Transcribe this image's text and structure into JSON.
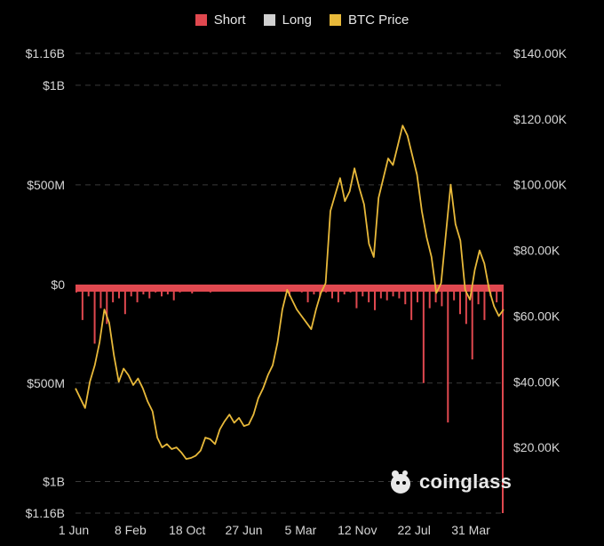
{
  "legend": [
    {
      "label": "Short",
      "color": "#e0484f"
    },
    {
      "label": "Long",
      "color": "#d0d0d0"
    },
    {
      "label": "BTC Price",
      "color": "#e8b93a"
    }
  ],
  "watermark": {
    "text": "coinglass",
    "icon": "coinglass-logo-icon"
  },
  "chart_data": {
    "type": "bar",
    "title": "",
    "grid": true,
    "legend_position": "top-center",
    "x_tick_labels": [
      "1 Jun",
      "8 Feb",
      "18 Oct",
      "27 Jun",
      "5 Mar",
      "12 Nov",
      "22 Jul",
      "31 Mar"
    ],
    "y_left": {
      "ticks": [
        {
          "label": "$1.16B",
          "value": 1160000000
        },
        {
          "label": "$1B",
          "value": 1000000000
        },
        {
          "label": "$500M",
          "value": 500000000
        },
        {
          "label": "$0",
          "value": 0
        },
        {
          "label": "$500M",
          "value": -500000000
        },
        {
          "label": "$1B",
          "value": -1000000000
        },
        {
          "label": "$1.16B",
          "value": -1160000000
        }
      ],
      "range": [
        -1160000000,
        1160000000
      ]
    },
    "y_right": {
      "ticks": [
        "$140.00K",
        "$120.00K",
        "$100.00K",
        "$80.00K",
        "$60.00K",
        "$40.00K",
        "$20.00K"
      ],
      "tick_values": [
        140000,
        120000,
        100000,
        80000,
        60000,
        40000,
        20000
      ],
      "range": [
        0,
        140000
      ]
    },
    "series": [
      {
        "name": "Short",
        "color": "#e0484f",
        "description": "daily short liquidations plotted downward from $0",
        "values": [
          -40000000,
          -180000000,
          -60000000,
          -300000000,
          -120000000,
          -200000000,
          -90000000,
          -70000000,
          -150000000,
          -60000000,
          -90000000,
          -50000000,
          -70000000,
          -40000000,
          -60000000,
          -50000000,
          -80000000,
          -40000000,
          -35000000,
          -45000000,
          -30000000,
          -30000000,
          -40000000,
          -25000000,
          -30000000,
          -30000000,
          -25000000,
          -35000000,
          -20000000,
          -25000000,
          -30000000,
          -20000000,
          -25000000,
          -30000000,
          -20000000,
          -60000000,
          -30000000,
          -40000000,
          -90000000,
          -50000000,
          -60000000,
          -40000000,
          -70000000,
          -90000000,
          -50000000,
          -40000000,
          -120000000,
          -60000000,
          -90000000,
          -130000000,
          -70000000,
          -80000000,
          -60000000,
          -70000000,
          -100000000,
          -180000000,
          -90000000,
          -500000000,
          -120000000,
          -90000000,
          -110000000,
          -700000000,
          -80000000,
          -150000000,
          -200000000,
          -380000000,
          -100000000,
          -180000000,
          -60000000,
          -90000000,
          -1160000000
        ]
      },
      {
        "name": "Long",
        "color": "#d0d0d0",
        "values": []
      },
      {
        "name": "BTC Price",
        "color": "#e8b93a",
        "axis": "right",
        "values": [
          38000,
          35000,
          32000,
          40000,
          45000,
          52000,
          62000,
          58000,
          48000,
          40000,
          44000,
          42000,
          39000,
          41000,
          38000,
          34000,
          31000,
          23000,
          20000,
          21000,
          19500,
          20000,
          18500,
          16500,
          16800,
          17500,
          19000,
          23000,
          22500,
          21000,
          25500,
          28000,
          30000,
          27500,
          29000,
          26500,
          27000,
          30000,
          35000,
          38000,
          42000,
          45000,
          52000,
          62000,
          68000,
          65000,
          62000,
          60000,
          58000,
          56000,
          62000,
          67000,
          70000,
          92000,
          97000,
          102000,
          95000,
          98000,
          105000,
          99000,
          94000,
          82000,
          78000,
          96000,
          102000,
          108000,
          106000,
          112000,
          118000,
          115000,
          109000,
          103000,
          92000,
          84000,
          78000,
          67000,
          70000,
          85000,
          100000,
          88000,
          83000,
          68000,
          65000,
          74000,
          80000,
          76000,
          68000,
          63000,
          60000,
          62000
        ]
      }
    ]
  }
}
